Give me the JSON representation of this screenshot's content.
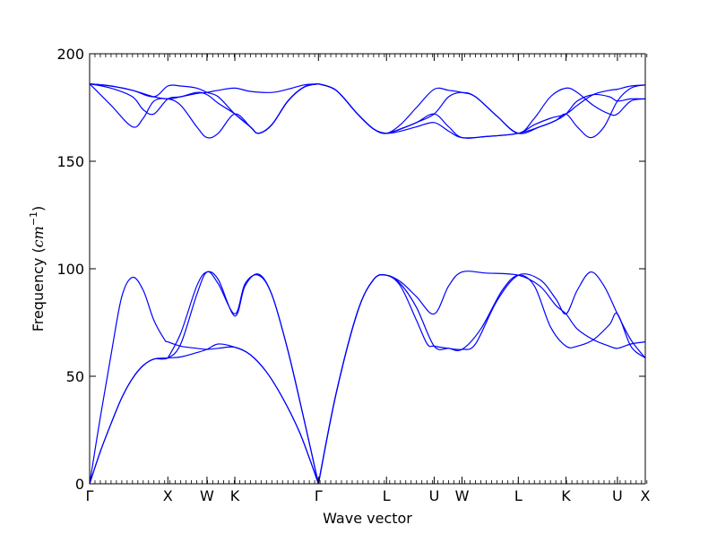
{
  "chart_data": {
    "type": "line",
    "title": "",
    "xlabel": "Wave vector",
    "ylabel": {
      "prefix": "Frequency (",
      "unit": "cm",
      "exponent": "−1",
      "suffix": ")"
    },
    "ylim": [
      0,
      200
    ],
    "yticks": [
      0,
      50,
      100,
      150,
      200
    ],
    "xlim": [
      0,
      10.37
    ],
    "xticks": [
      {
        "label": "Γ",
        "x": 0.0
      },
      {
        "label": "X",
        "x": 1.46
      },
      {
        "label": "W",
        "x": 2.19
      },
      {
        "label": "K",
        "x": 2.71
      },
      {
        "label": "Γ",
        "x": 4.27
      },
      {
        "label": "L",
        "x": 5.54
      },
      {
        "label": "U",
        "x": 6.43
      },
      {
        "label": "W",
        "x": 6.95
      },
      {
        "label": "L",
        "x": 8.0
      },
      {
        "label": "K",
        "x": 8.89
      },
      {
        "label": "U",
        "x": 9.85
      },
      {
        "label": "X",
        "x": 10.37
      }
    ],
    "minor_ticks_per_unit": 10,
    "grid": false,
    "line_color": "#0000ff",
    "series": [
      {
        "points": [
          [
            0,
            0
          ],
          [
            0.2,
            31
          ],
          [
            0.4,
            60
          ],
          [
            0.6,
            87
          ],
          [
            0.8,
            96
          ],
          [
            1.0,
            90
          ],
          [
            1.2,
            76
          ],
          [
            1.4,
            67
          ],
          [
            1.46,
            66
          ],
          [
            1.7,
            64
          ],
          [
            2.0,
            63
          ],
          [
            2.19,
            62.5
          ],
          [
            2.4,
            63
          ],
          [
            2.71,
            63.5
          ],
          [
            3.0,
            60
          ],
          [
            3.3,
            52
          ],
          [
            3.6,
            40
          ],
          [
            3.9,
            25
          ],
          [
            4.1,
            12
          ],
          [
            4.27,
            0
          ]
        ]
      },
      {
        "points": [
          [
            0,
            0
          ],
          [
            0.2,
            15
          ],
          [
            0.4,
            28
          ],
          [
            0.6,
            40
          ],
          [
            0.8,
            49
          ],
          [
            1.0,
            55
          ],
          [
            1.2,
            58
          ],
          [
            1.46,
            58.5
          ],
          [
            1.7,
            59
          ],
          [
            2.0,
            61
          ],
          [
            2.19,
            62.5
          ],
          [
            2.4,
            65
          ],
          [
            2.71,
            63.5
          ],
          [
            3.0,
            60
          ],
          [
            3.3,
            52
          ],
          [
            3.6,
            40
          ],
          [
            3.9,
            25
          ],
          [
            4.1,
            12
          ],
          [
            4.27,
            0
          ]
        ]
      },
      {
        "points": [
          [
            0,
            0
          ],
          [
            0.2,
            15
          ],
          [
            0.4,
            28
          ],
          [
            0.6,
            40
          ],
          [
            0.8,
            49
          ],
          [
            1.0,
            55
          ],
          [
            1.2,
            58
          ],
          [
            1.46,
            58.5
          ],
          [
            1.7,
            65
          ],
          [
            2.0,
            88
          ],
          [
            2.19,
            98.5
          ],
          [
            2.4,
            93
          ],
          [
            2.71,
            79
          ],
          [
            2.9,
            93
          ],
          [
            3.15,
            97
          ],
          [
            3.4,
            88
          ],
          [
            3.7,
            62
          ],
          [
            4.0,
            30
          ],
          [
            4.27,
            0
          ]
        ]
      },
      {
        "points": [
          [
            1.46,
            58.5
          ],
          [
            1.7,
            70
          ],
          [
            2.0,
            92
          ],
          [
            2.19,
            98.5
          ],
          [
            2.4,
            95
          ],
          [
            2.71,
            78
          ],
          [
            2.9,
            92
          ],
          [
            3.15,
            97.5
          ],
          [
            3.4,
            88
          ],
          [
            3.7,
            62
          ],
          [
            4.0,
            30
          ],
          [
            4.27,
            0
          ]
        ]
      },
      {
        "points": [
          [
            4.27,
            0
          ],
          [
            4.6,
            42
          ],
          [
            5.0,
            80
          ],
          [
            5.3,
            95
          ],
          [
            5.54,
            97
          ],
          [
            5.8,
            94
          ],
          [
            6.1,
            87
          ],
          [
            6.43,
            79
          ],
          [
            6.7,
            92
          ],
          [
            6.95,
            98.5
          ],
          [
            7.4,
            98
          ],
          [
            8.0,
            97
          ],
          [
            8.4,
            92
          ],
          [
            8.7,
            83
          ],
          [
            8.89,
            79
          ],
          [
            9.1,
            72
          ],
          [
            9.4,
            67
          ],
          [
            9.7,
            64
          ],
          [
            9.85,
            63
          ],
          [
            10.1,
            65
          ],
          [
            10.37,
            66
          ]
        ]
      },
      {
        "points": [
          [
            4.27,
            0
          ],
          [
            4.6,
            42
          ],
          [
            5.0,
            80
          ],
          [
            5.3,
            95
          ],
          [
            5.54,
            97
          ],
          [
            5.8,
            92
          ],
          [
            6.1,
            76
          ],
          [
            6.3,
            65
          ],
          [
            6.43,
            64
          ],
          [
            6.7,
            63
          ],
          [
            6.95,
            62.5
          ],
          [
            7.3,
            72
          ],
          [
            7.7,
            90
          ],
          [
            8.0,
            97
          ],
          [
            8.3,
            92
          ],
          [
            8.6,
            73
          ],
          [
            8.89,
            64
          ],
          [
            9.1,
            64
          ],
          [
            9.4,
            67
          ],
          [
            9.7,
            74
          ],
          [
            9.85,
            79
          ],
          [
            10.1,
            64
          ],
          [
            10.37,
            58.5
          ]
        ]
      },
      {
        "points": [
          [
            4.27,
            0
          ],
          [
            4.6,
            42
          ],
          [
            5.0,
            80
          ],
          [
            5.3,
            95
          ],
          [
            5.54,
            97
          ],
          [
            5.8,
            93
          ],
          [
            6.1,
            82
          ],
          [
            6.43,
            64
          ],
          [
            6.7,
            63
          ],
          [
            6.95,
            62.5
          ],
          [
            7.2,
            65
          ],
          [
            7.6,
            85
          ],
          [
            8.0,
            97
          ],
          [
            8.4,
            95
          ],
          [
            8.7,
            86
          ],
          [
            8.89,
            79
          ],
          [
            9.1,
            90
          ],
          [
            9.35,
            98.5
          ],
          [
            9.6,
            92
          ],
          [
            9.85,
            79
          ],
          [
            10.1,
            67
          ],
          [
            10.37,
            58.5
          ]
        ]
      },
      {
        "points": [
          [
            0,
            186
          ],
          [
            0.4,
            184
          ],
          [
            0.8,
            180
          ],
          [
            1.0,
            174
          ],
          [
            1.2,
            172
          ],
          [
            1.46,
            179
          ],
          [
            1.7,
            180
          ],
          [
            2.0,
            182
          ],
          [
            2.19,
            181
          ],
          [
            2.4,
            177
          ],
          [
            2.71,
            172
          ],
          [
            3.0,
            166
          ],
          [
            3.15,
            163
          ],
          [
            3.4,
            167
          ],
          [
            3.7,
            178
          ],
          [
            4.0,
            184.5
          ],
          [
            4.27,
            186
          ]
        ]
      },
      {
        "points": [
          [
            0,
            186
          ],
          [
            0.4,
            176
          ],
          [
            0.8,
            166
          ],
          [
            1.0,
            170
          ],
          [
            1.2,
            178
          ],
          [
            1.46,
            179
          ],
          [
            1.7,
            176
          ],
          [
            2.0,
            166
          ],
          [
            2.19,
            161
          ],
          [
            2.4,
            163
          ],
          [
            2.71,
            172
          ],
          [
            3.0,
            166
          ],
          [
            3.15,
            163
          ],
          [
            3.4,
            167
          ],
          [
            3.7,
            178
          ],
          [
            4.0,
            184.5
          ],
          [
            4.27,
            186
          ]
        ]
      },
      {
        "points": [
          [
            0,
            186
          ],
          [
            0.4,
            185
          ],
          [
            0.8,
            183
          ],
          [
            1.2,
            180
          ],
          [
            1.46,
            179
          ],
          [
            1.7,
            180
          ],
          [
            2.0,
            181.5
          ],
          [
            2.19,
            182
          ],
          [
            2.4,
            183
          ],
          [
            2.71,
            184
          ],
          [
            3.0,
            182.5
          ],
          [
            3.4,
            182
          ],
          [
            3.7,
            183.5
          ],
          [
            4.0,
            185.5
          ],
          [
            4.27,
            186
          ]
        ]
      },
      {
        "points": [
          [
            0,
            186
          ],
          [
            0.4,
            185
          ],
          [
            0.8,
            183
          ],
          [
            1.2,
            180
          ],
          [
            1.46,
            185
          ],
          [
            1.7,
            185
          ],
          [
            2.0,
            184
          ],
          [
            2.19,
            182
          ],
          [
            2.4,
            180
          ],
          [
            2.71,
            172
          ],
          [
            3.0,
            166
          ],
          [
            3.15,
            163
          ],
          [
            3.4,
            167
          ],
          [
            3.7,
            178
          ],
          [
            4.0,
            184.5
          ],
          [
            4.27,
            186
          ]
        ]
      },
      {
        "points": [
          [
            4.27,
            186
          ],
          [
            4.6,
            183
          ],
          [
            5.0,
            172
          ],
          [
            5.3,
            165
          ],
          [
            5.54,
            163
          ],
          [
            5.8,
            165
          ],
          [
            6.1,
            168
          ],
          [
            6.43,
            172
          ],
          [
            6.7,
            180
          ],
          [
            6.95,
            182
          ],
          [
            7.2,
            180
          ],
          [
            7.6,
            171
          ],
          [
            8.0,
            163
          ],
          [
            8.4,
            166
          ],
          [
            8.7,
            169
          ],
          [
            8.89,
            172
          ],
          [
            9.1,
            178
          ],
          [
            9.4,
            181
          ],
          [
            9.7,
            180
          ],
          [
            9.85,
            178
          ],
          [
            10.1,
            179
          ],
          [
            10.37,
            179
          ]
        ]
      },
      {
        "points": [
          [
            4.27,
            186
          ],
          [
            4.6,
            183
          ],
          [
            5.0,
            172
          ],
          [
            5.3,
            165
          ],
          [
            5.54,
            163
          ],
          [
            5.8,
            167
          ],
          [
            6.1,
            175
          ],
          [
            6.43,
            183.5
          ],
          [
            6.7,
            183
          ],
          [
            6.95,
            182
          ],
          [
            7.2,
            180
          ],
          [
            7.6,
            171
          ],
          [
            8.0,
            163
          ],
          [
            8.3,
            170
          ],
          [
            8.6,
            180
          ],
          [
            8.89,
            184
          ],
          [
            9.1,
            182
          ],
          [
            9.4,
            176
          ],
          [
            9.7,
            172
          ],
          [
            9.85,
            172
          ],
          [
            10.1,
            178
          ],
          [
            10.37,
            179
          ]
        ]
      },
      {
        "points": [
          [
            4.27,
            186
          ],
          [
            4.6,
            183
          ],
          [
            5.0,
            172
          ],
          [
            5.3,
            165
          ],
          [
            5.54,
            163
          ],
          [
            5.8,
            165
          ],
          [
            6.1,
            168
          ],
          [
            6.43,
            172
          ],
          [
            6.7,
            166
          ],
          [
            6.95,
            161
          ],
          [
            7.4,
            161.5
          ],
          [
            8.0,
            163
          ],
          [
            8.4,
            166
          ],
          [
            8.7,
            169
          ],
          [
            8.89,
            172
          ],
          [
            9.1,
            166
          ],
          [
            9.35,
            161
          ],
          [
            9.6,
            166
          ],
          [
            9.85,
            178
          ],
          [
            10.1,
            184
          ],
          [
            10.37,
            185.5
          ]
        ]
      },
      {
        "points": [
          [
            4.27,
            186
          ],
          [
            4.6,
            183
          ],
          [
            5.0,
            172
          ],
          [
            5.3,
            165
          ],
          [
            5.54,
            163
          ],
          [
            5.8,
            164
          ],
          [
            6.1,
            166
          ],
          [
            6.43,
            168
          ],
          [
            6.7,
            164
          ],
          [
            6.95,
            161
          ],
          [
            7.4,
            161.5
          ],
          [
            8.0,
            163
          ],
          [
            8.3,
            167
          ],
          [
            8.6,
            170
          ],
          [
            8.89,
            172
          ],
          [
            9.1,
            176
          ],
          [
            9.4,
            181
          ],
          [
            9.7,
            183
          ],
          [
            9.85,
            183.5
          ],
          [
            10.1,
            185
          ],
          [
            10.37,
            185.5
          ]
        ]
      }
    ]
  }
}
